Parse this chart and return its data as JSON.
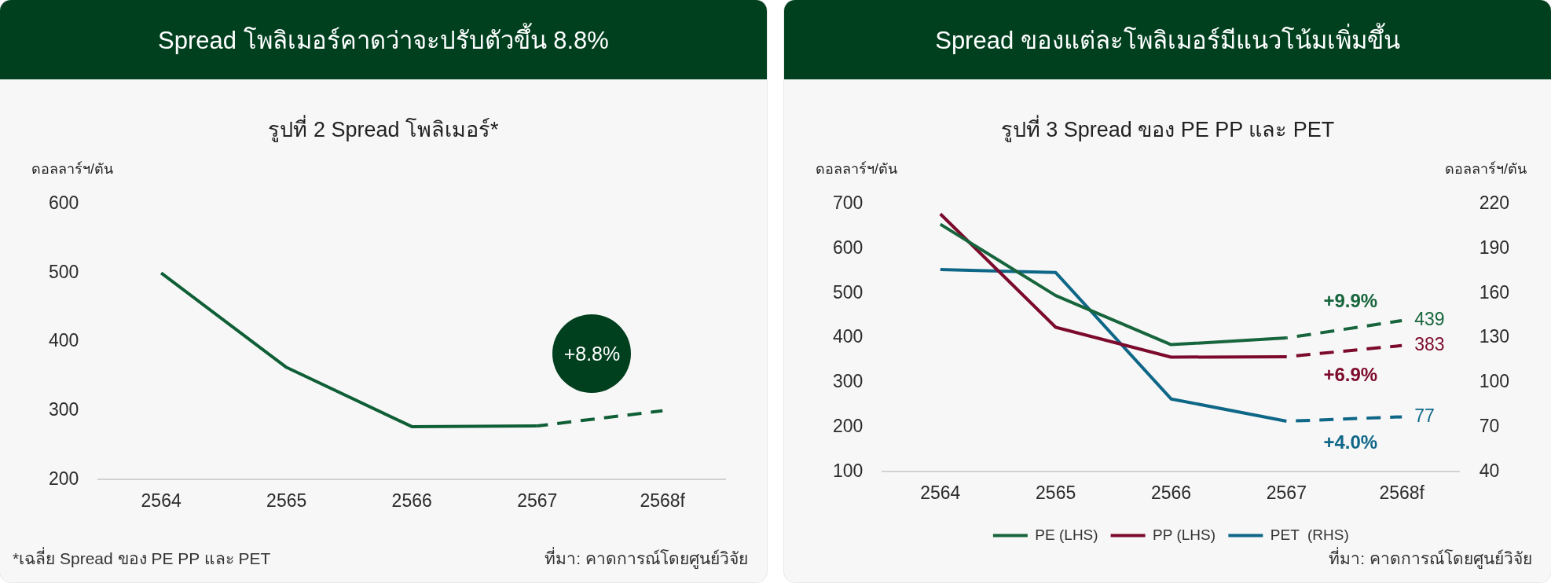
{
  "chart_data": [
    {
      "type": "line",
      "title": "Spread โพลิเมอร์คาดว่าจะปรับตัวขึ้น 8.8%",
      "subtitle": "รูปที่ 2 Spread โพลิเมอร์*",
      "ylabel": "ดอลลาร์ฯ/ตัน",
      "categories": [
        "2564",
        "2565",
        "2566",
        "2567",
        "2568f"
      ],
      "series": [
        {
          "color": "#0f5f36",
          "values": [
            500,
            363,
            277,
            278,
            null
          ],
          "line_style": "solid"
        },
        {
          "color": "#0f5f36",
          "values": [
            null,
            null,
            null,
            278,
            300
          ],
          "line_style": "dashed"
        }
      ],
      "ylim": [
        200,
        600
      ],
      "yticks": [
        200,
        300,
        400,
        500,
        600
      ],
      "grid": false,
      "legend": false,
      "marker": "none",
      "annotations": [
        "+8.8%",
        "*เฉลี่ย Spread ของ PE PP และ PET",
        "ที่มา: คาดการณ์โดยศูนย์วิจัย"
      ]
    },
    {
      "type": "line",
      "title": "Spread ของแต่ละโพลิเมอร์มีแนวโน้มเพิ่มขึ้น",
      "subtitle": "รูปที่ 3 Spread ของ PE PP และ PET",
      "ylabel": "ดอลลาร์ฯ/ตัน",
      "y2label": "ดอลลาร์ฯ/ตัน",
      "categories": [
        "2564",
        "2565",
        "2566",
        "2567",
        "2568f"
      ],
      "series": [
        {
          "name": "PE (LHS)",
          "color": "#17653c",
          "values": [
            655,
            495,
            385,
            400,
            null
          ],
          "line_style": "solid"
        },
        {
          "color": "#17653c",
          "values": [
            null,
            null,
            null,
            400,
            439
          ],
          "line_style": "dashed",
          "value_labels": [
            null,
            null,
            null,
            null,
            "439"
          ]
        },
        {
          "name": "PP (LHS)",
          "color": "#7c0a2c",
          "values": [
            678,
            424,
            357,
            358,
            null
          ],
          "line_style": "solid"
        },
        {
          "color": "#7c0a2c",
          "values": [
            null,
            null,
            null,
            358,
            383
          ],
          "line_style": "dashed",
          "value_labels": [
            null,
            null,
            null,
            null,
            "383"
          ]
        },
        {
          "name": "PET  (RHS)",
          "color": "#0f6788",
          "axis": "y2",
          "values": [
            176,
            174,
            89,
            74,
            null
          ],
          "line_style": "solid"
        },
        {
          "color": "#0f6788",
          "axis": "y2",
          "values": [
            null,
            null,
            null,
            74,
            77
          ],
          "line_style": "dashed",
          "value_labels": [
            null,
            null,
            null,
            null,
            "77"
          ]
        }
      ],
      "ylim": [
        100,
        700
      ],
      "yticks": [
        100,
        200,
        300,
        400,
        500,
        600,
        700
      ],
      "y2lim": [
        40,
        220
      ],
      "y2ticks": [
        40,
        70,
        100,
        130,
        160,
        190,
        220
      ],
      "grid": false,
      "legend": "bottom",
      "marker": "none",
      "annotations": [
        "+9.9%",
        "+6.9%",
        "+4.0%",
        "ที่มา: คาดการณ์โดยศูนย์วิจัย"
      ]
    }
  ]
}
